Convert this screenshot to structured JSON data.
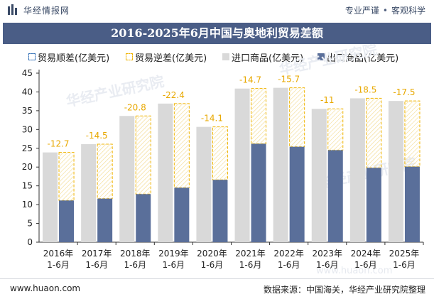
{
  "header": {
    "brand": "华经情报网",
    "tagline_left": "专业严谨",
    "tagline_right": "客观科学"
  },
  "title": "2016-2025年6月中国与奥地利贸易差额",
  "legend": [
    {
      "label": "贸易顺差(亿美元)",
      "color": "#2f6db5",
      "style": "dashed-box"
    },
    {
      "label": "贸易逆差(亿美元)",
      "color": "#f0b400",
      "style": "dashed-box"
    },
    {
      "label": "进口商品(亿美元)",
      "color": "#d9d9d9",
      "style": "solid"
    },
    {
      "label": "出口商品(亿美元)",
      "color": "#5a6f9a",
      "style": "solid"
    }
  ],
  "chart_data": {
    "type": "bar",
    "categories": [
      "2016年\n1-6月",
      "2017年\n1-6月",
      "2018年\n1-6月",
      "2019年\n1-6月",
      "2020年\n1-6月",
      "2021年\n1-6月",
      "2022年\n1-6月",
      "2023年\n1-6月",
      "2024年\n1-6月",
      "2025年\n1-6月"
    ],
    "series": [
      {
        "name": "进口商品(亿美元)",
        "color": "#d9d9d9",
        "values": [
          23.9,
          26.1,
          33.6,
          36.9,
          30.7,
          40.9,
          41.1,
          35.5,
          38.3,
          37.6
        ]
      },
      {
        "name": "出口商品(亿美元)",
        "color": "#5a6f9a",
        "values": [
          11.1,
          11.6,
          12.8,
          14.5,
          16.6,
          26.2,
          25.4,
          24.5,
          19.8,
          20.1
        ]
      },
      {
        "name": "贸易逆差(亿美元)",
        "color": "#f0b400",
        "values": [
          -12.7,
          -14.5,
          -20.8,
          -22.4,
          -14.1,
          -14.7,
          -15.7,
          -11,
          -18.5,
          -17.5
        ]
      }
    ],
    "data_labels": [
      "-12.7",
      "-14.5",
      "-20.8",
      "-22.4",
      "-14.1",
      "-14.7",
      "-15.7",
      "-11",
      "-18.5",
      "-17.5"
    ],
    "yticks": [
      0,
      5,
      10,
      15,
      20,
      25,
      30,
      35,
      40,
      45
    ],
    "ylim": [
      0,
      45
    ],
    "grid": false,
    "legend_position": "top-left"
  },
  "watermark": "华经产业研究院",
  "watermark_url": "www.huaon.com",
  "footer": {
    "url": "www.huaon.com",
    "source": "数据来源：中国海关，华经产业研究院整理"
  }
}
